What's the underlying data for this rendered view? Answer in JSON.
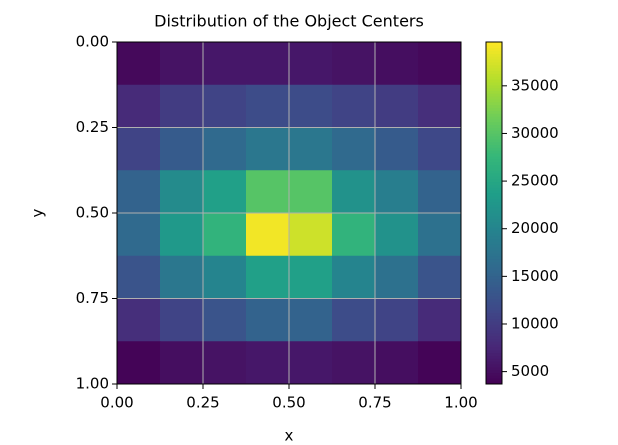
{
  "chart_data": {
    "type": "heatmap",
    "title": "Distribution of the Object Centers",
    "x_label": "x",
    "y_label": "y",
    "xlim": [
      0,
      1
    ],
    "ylim": [
      1,
      0
    ],
    "y_inverted": true,
    "xticks": [
      {
        "value": 0,
        "label": "0.00"
      },
      {
        "value": 0.25,
        "label": "0.25"
      },
      {
        "value": 0.5,
        "label": "0.50"
      },
      {
        "value": 0.75,
        "label": "0.75"
      },
      {
        "value": 1,
        "label": "1.00"
      }
    ],
    "yticks": [
      {
        "value": 0,
        "label": "0.00"
      },
      {
        "value": 0.25,
        "label": "0.25"
      },
      {
        "value": 0.5,
        "label": "0.50"
      },
      {
        "value": 0.75,
        "label": "0.75"
      },
      {
        "value": 1,
        "label": "1.00"
      }
    ],
    "grid": true,
    "colormap": "viridis",
    "values": [
      [
        4500,
        5500,
        6000,
        6000,
        6000,
        5500,
        5000,
        4500
      ],
      [
        8000,
        10000,
        11000,
        12000,
        12000,
        11000,
        10000,
        8500
      ],
      [
        11000,
        14000,
        16000,
        18000,
        18000,
        16000,
        14000,
        11500
      ],
      [
        15000,
        21000,
        24000,
        30000,
        30000,
        22000,
        19000,
        15000
      ],
      [
        16000,
        23000,
        27000,
        39000,
        37000,
        27000,
        22000,
        17000
      ],
      [
        13000,
        18000,
        20000,
        24000,
        24000,
        20000,
        17000,
        13000
      ],
      [
        8500,
        11000,
        13000,
        15000,
        15000,
        12000,
        11000,
        8000
      ],
      [
        4000,
        5000,
        5500,
        6000,
        6000,
        5500,
        5000,
        4000
      ]
    ],
    "colorbar_lim": [
      3700,
      39600
    ],
    "colorbar_ticks": [
      5000,
      10000,
      15000,
      20000,
      25000,
      30000,
      35000
    ]
  }
}
